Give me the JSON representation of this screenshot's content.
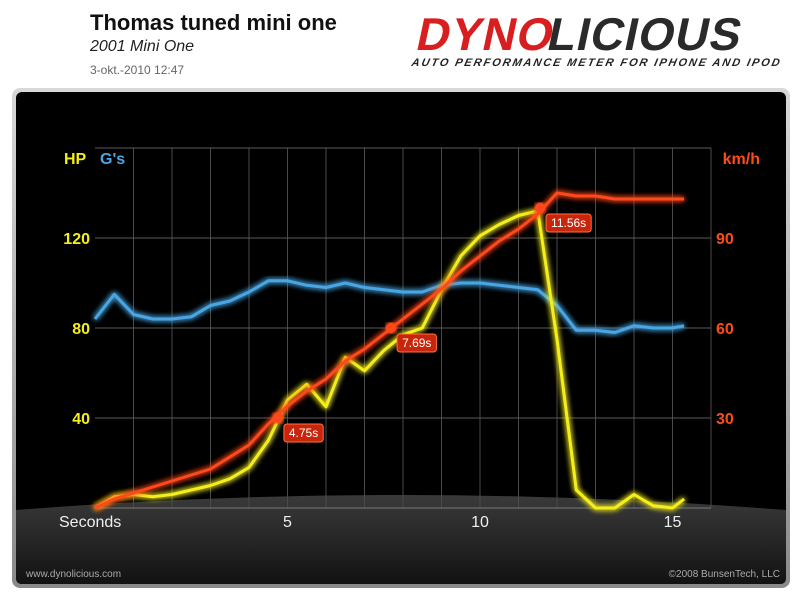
{
  "header": {
    "title": "Thomas tuned mini one",
    "subtitle": "2001 Mini One",
    "date": "3-okt.-2010 12:47",
    "logo_red": "DYNO",
    "logo_dark": "LICIOUS",
    "tagline": "AUTO PERFORMANCE METER FOR IPHONE AND IPOD"
  },
  "footer": {
    "left": "www.dynolicious.com",
    "right": "©2008 BunsenTech, LLC"
  },
  "chart_data": {
    "type": "line",
    "x_label": "Seconds",
    "x": [
      0,
      0.5,
      1,
      1.5,
      2,
      2.5,
      3,
      3.5,
      4,
      4.5,
      5,
      5.5,
      6,
      6.5,
      7,
      7.5,
      8,
      8.5,
      9,
      9.5,
      10,
      10.5,
      11,
      11.5,
      12,
      12.5,
      13,
      13.5,
      14,
      14.5,
      15,
      15.3
    ],
    "series": [
      {
        "name": "HP",
        "color": "#f4ee1c",
        "axis": "y",
        "values": [
          0,
          5,
          6,
          5,
          6,
          8,
          10,
          13,
          18,
          30,
          48,
          55,
          45,
          67,
          61,
          70,
          77,
          80,
          97,
          112,
          121,
          126,
          130,
          132,
          75,
          8,
          0,
          0,
          6,
          1,
          0,
          4
        ]
      },
      {
        "name": "G's",
        "color": "#4aa6e4",
        "axis": "y",
        "values": [
          84,
          95,
          86,
          84,
          84,
          85,
          90,
          92,
          96,
          101,
          101,
          99,
          98,
          100,
          98,
          97,
          96,
          96,
          99,
          100,
          100,
          99,
          98,
          97,
          90,
          79,
          79,
          78,
          81,
          80,
          80,
          81
        ]
      },
      {
        "name": "km/h",
        "color": "#ff4a1a",
        "axis": "y2",
        "values": [
          0,
          3,
          5,
          7,
          9,
          11,
          13,
          17,
          21,
          28,
          34,
          39,
          43,
          49,
          53,
          58,
          63,
          68,
          73,
          79,
          84,
          89,
          93,
          98,
          105,
          104,
          104,
          103,
          103,
          103,
          103,
          103
        ]
      }
    ],
    "xlim": [
      0,
      16
    ],
    "xticks": [
      5,
      10,
      15
    ],
    "x_minor_ticks": [
      1,
      2,
      3,
      4,
      5,
      6,
      7,
      8,
      9,
      10,
      11,
      12,
      13,
      14,
      15,
      16
    ],
    "ylim": [
      0,
      160
    ],
    "yticks": [
      40,
      80,
      120,
      160
    ],
    "y2lim": [
      0,
      120
    ],
    "y2ticks": [
      30,
      60,
      90
    ],
    "annotations": [
      {
        "x": 4.75,
        "y": 30,
        "label": "4.75s"
      },
      {
        "x": 7.69,
        "y": 60,
        "label": "7.69s"
      },
      {
        "x": 11.56,
        "y": 100,
        "label": "11.56s"
      }
    ],
    "vlines": [
      10.8,
      15.2
    ],
    "vline_color": "#7fe03a",
    "grid": true
  }
}
